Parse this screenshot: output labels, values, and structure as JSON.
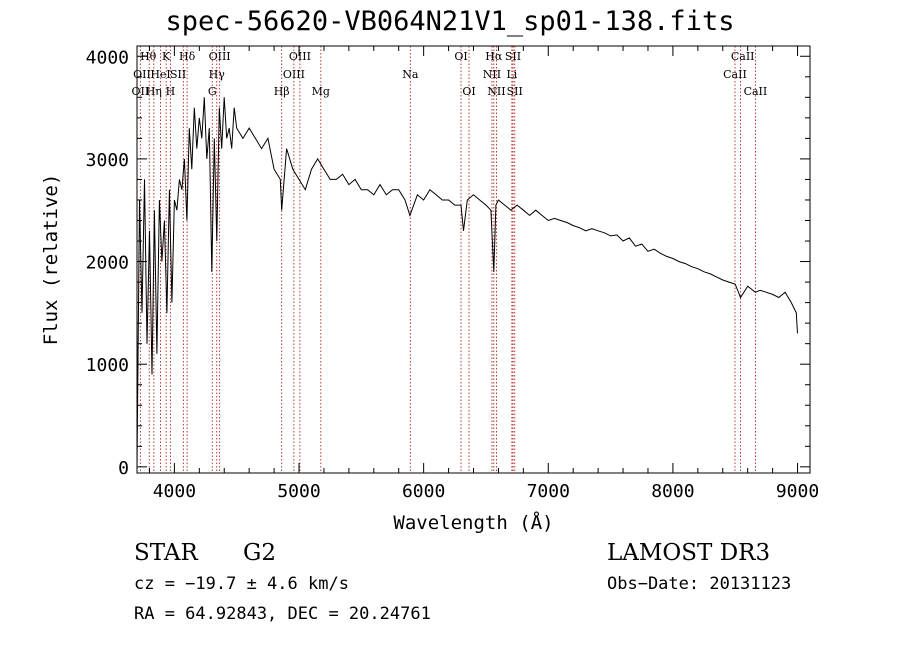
{
  "chart_data": {
    "type": "line",
    "title": "spec-56620-VB064N21V1_sp01-138.fits",
    "xlabel": "Wavelength (Å)",
    "ylabel": "Flux (relative)",
    "xlim": [
      3700,
      9100
    ],
    "ylim": [
      -60,
      4100
    ],
    "x_ticks": [
      4000,
      5000,
      6000,
      7000,
      8000,
      9000
    ],
    "y_ticks": [
      0,
      1000,
      2000,
      3000,
      4000
    ],
    "grid": false,
    "series": [
      {
        "name": "flux",
        "x": [
          3700,
          3720,
          3740,
          3760,
          3780,
          3800,
          3820,
          3840,
          3860,
          3880,
          3900,
          3920,
          3940,
          3960,
          3980,
          4000,
          4020,
          4040,
          4060,
          4080,
          4100,
          4120,
          4140,
          4160,
          4180,
          4200,
          4220,
          4240,
          4260,
          4280,
          4300,
          4320,
          4340,
          4360,
          4380,
          4400,
          4420,
          4440,
          4460,
          4480,
          4500,
          4550,
          4600,
          4650,
          4700,
          4750,
          4800,
          4850,
          4861,
          4900,
          4950,
          5000,
          5050,
          5100,
          5150,
          5200,
          5250,
          5300,
          5350,
          5400,
          5450,
          5500,
          5550,
          5600,
          5650,
          5700,
          5750,
          5800,
          5850,
          5890,
          5950,
          6000,
          6050,
          6100,
          6150,
          6200,
          6250,
          6300,
          6320,
          6350,
          6400,
          6450,
          6500,
          6540,
          6563,
          6580,
          6600,
          6650,
          6700,
          6750,
          6800,
          6850,
          6900,
          6950,
          7000,
          7050,
          7100,
          7150,
          7200,
          7250,
          7300,
          7350,
          7400,
          7450,
          7500,
          7550,
          7600,
          7650,
          7700,
          7750,
          7800,
          7850,
          7900,
          7950,
          8000,
          8050,
          8100,
          8150,
          8200,
          8250,
          8300,
          8350,
          8400,
          8450,
          8500,
          8542,
          8600,
          8662,
          8700,
          8750,
          8800,
          8850,
          8900,
          8950,
          8990,
          9000
        ],
        "y": [
          0,
          2600,
          1500,
          2800,
          1200,
          2300,
          900,
          2500,
          1100,
          2600,
          2000,
          2400,
          1500,
          2700,
          1600,
          2600,
          2500,
          2800,
          2700,
          3000,
          2400,
          3300,
          2900,
          3500,
          3100,
          3400,
          3200,
          3600,
          3000,
          3300,
          1900,
          3200,
          2200,
          3500,
          3100,
          3600,
          3200,
          3300,
          3100,
          3500,
          3300,
          3200,
          3300,
          3200,
          3100,
          3200,
          2900,
          2800,
          2500,
          3100,
          2900,
          2800,
          2700,
          2900,
          3000,
          2900,
          2800,
          2800,
          2850,
          2750,
          2800,
          2700,
          2700,
          2650,
          2750,
          2650,
          2700,
          2700,
          2600,
          2450,
          2650,
          2600,
          2700,
          2650,
          2600,
          2600,
          2550,
          2550,
          2300,
          2600,
          2650,
          2600,
          2550,
          2500,
          1900,
          2550,
          2600,
          2550,
          2500,
          2550,
          2500,
          2450,
          2500,
          2450,
          2400,
          2420,
          2400,
          2380,
          2350,
          2330,
          2300,
          2320,
          2300,
          2280,
          2250,
          2260,
          2200,
          2230,
          2150,
          2170,
          2100,
          2120,
          2080,
          2050,
          2030,
          2000,
          1980,
          1950,
          1930,
          1900,
          1880,
          1850,
          1820,
          1800,
          1780,
          1650,
          1760,
          1700,
          1720,
          1700,
          1680,
          1650,
          1700,
          1600,
          1500,
          1300
        ]
      }
    ],
    "lines": [
      {
        "label": "OII",
        "wavelength": 3727
      },
      {
        "label": "Hθ",
        "wavelength": 3798
      },
      {
        "label": "Hη",
        "wavelength": 3835
      },
      {
        "label": "HeI",
        "wavelength": 3889
      },
      {
        "label": "K",
        "wavelength": 3934
      },
      {
        "label": "H",
        "wavelength": 3968
      },
      {
        "label": "SII",
        "wavelength": 4072
      },
      {
        "label": "Hδ",
        "wavelength": 4102
      },
      {
        "label": "G",
        "wavelength": 4304
      },
      {
        "label": "Hγ",
        "wavelength": 4340
      },
      {
        "label": "OIII",
        "wavelength": 4363
      },
      {
        "label": "Hβ",
        "wavelength": 4861
      },
      {
        "label": "OIII",
        "wavelength": 4959
      },
      {
        "label": "OIII",
        "wavelength": 5007
      },
      {
        "label": "Mg",
        "wavelength": 5175
      },
      {
        "label": "Na",
        "wavelength": 5893
      },
      {
        "label": "OI",
        "wavelength": 6300
      },
      {
        "label": "OI",
        "wavelength": 6364
      },
      {
        "label": "NII",
        "wavelength": 6548
      },
      {
        "label": "Hα",
        "wavelength": 6563
      },
      {
        "label": "NII",
        "wavelength": 6584
      },
      {
        "label": "Li",
        "wavelength": 6708
      },
      {
        "label": "SII",
        "wavelength": 6717
      },
      {
        "label": "SII",
        "wavelength": 6731
      },
      {
        "label": "CaII",
        "wavelength": 8498
      },
      {
        "label": "CaII",
        "wavelength": 8542
      },
      {
        "label": "CaII",
        "wavelength": 8662
      }
    ],
    "line_labels": [
      {
        "text": "Hθ",
        "wavelength": 3790,
        "row": 0
      },
      {
        "text": "K",
        "wavelength": 3934,
        "row": 0
      },
      {
        "text": "Hδ",
        "wavelength": 4102,
        "row": 0
      },
      {
        "text": "OIII",
        "wavelength": 4363,
        "row": 0
      },
      {
        "text": "OIII",
        "wavelength": 5007,
        "row": 0
      },
      {
        "text": "OI",
        "wavelength": 6300,
        "row": 0
      },
      {
        "text": "Hα",
        "wavelength": 6563,
        "row": 0
      },
      {
        "text": "SII",
        "wavelength": 6717,
        "row": 0
      },
      {
        "text": "CaII",
        "wavelength": 8560,
        "row": 0
      },
      {
        "text": "OII",
        "wavelength": 3740,
        "row": 1
      },
      {
        "text": "HeI",
        "wavelength": 3889,
        "row": 1
      },
      {
        "text": "SII",
        "wavelength": 4030,
        "row": 1
      },
      {
        "text": "Hγ",
        "wavelength": 4340,
        "row": 1
      },
      {
        "text": "OIII",
        "wavelength": 4959,
        "row": 1
      },
      {
        "text": "Na",
        "wavelength": 5893,
        "row": 1
      },
      {
        "text": "NII",
        "wavelength": 6548,
        "row": 1
      },
      {
        "text": "Li",
        "wavelength": 6708,
        "row": 1
      },
      {
        "text": "CaII",
        "wavelength": 8498,
        "row": 1
      },
      {
        "text": "OII",
        "wavelength": 3727,
        "row": 2
      },
      {
        "text": "Hη",
        "wavelength": 3835,
        "row": 2
      },
      {
        "text": "H",
        "wavelength": 3968,
        "row": 2
      },
      {
        "text": "G",
        "wavelength": 4304,
        "row": 2
      },
      {
        "text": "Hβ",
        "wavelength": 4861,
        "row": 2
      },
      {
        "text": "Mg",
        "wavelength": 5175,
        "row": 2
      },
      {
        "text": "OI",
        "wavelength": 6364,
        "row": 2
      },
      {
        "text": "NII",
        "wavelength": 6584,
        "row": 2
      },
      {
        "text": "SII",
        "wavelength": 6731,
        "row": 2
      },
      {
        "text": "CaII",
        "wavelength": 8662,
        "row": 2
      }
    ],
    "colors": {
      "spectrum": "#000000",
      "line_marker": "#b22222",
      "axes": "#000000"
    }
  },
  "info": {
    "class": "STAR",
    "subclass": "G2",
    "survey": "LAMOST DR3",
    "cz": "cz = −19.7 ± 4.6 km/s",
    "obs_date": "Obs−Date: 20131123",
    "radec": "RA =  64.92843, DEC =  20.24761"
  }
}
